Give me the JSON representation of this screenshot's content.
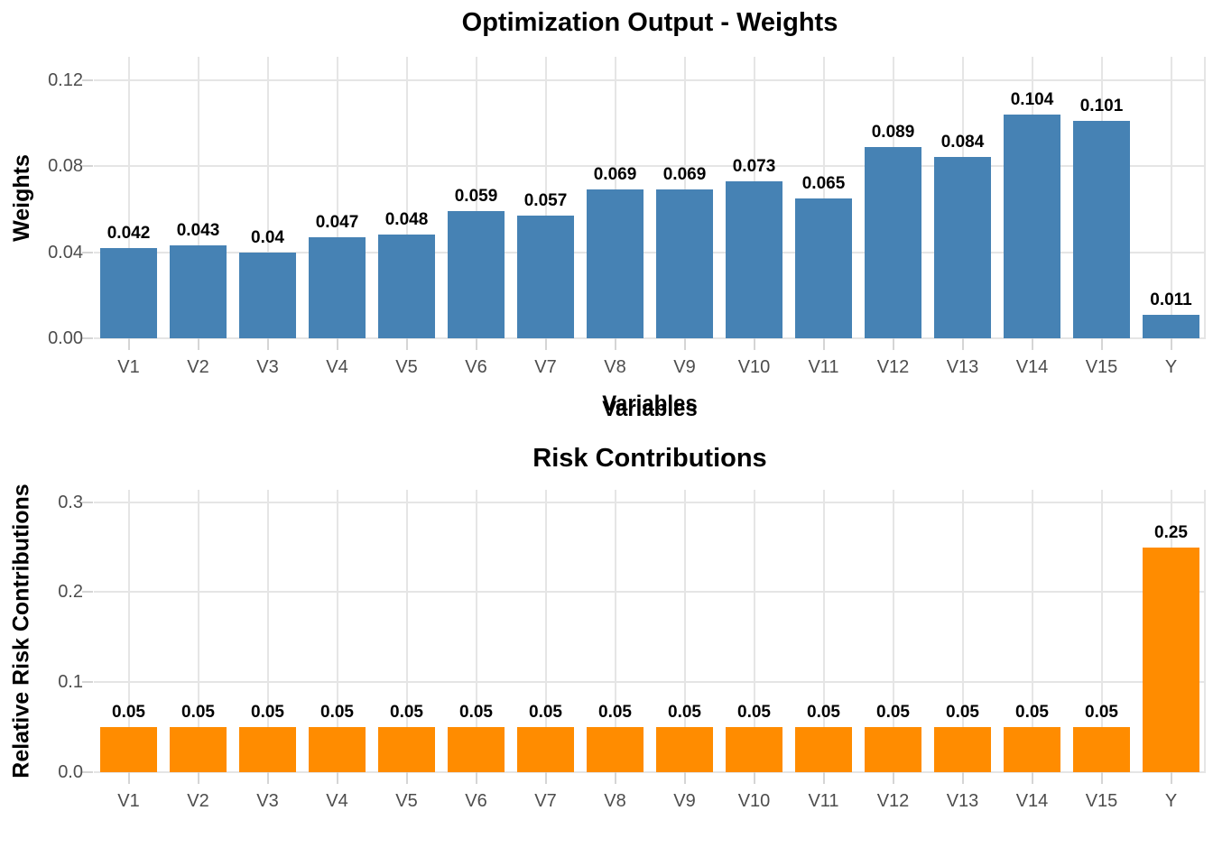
{
  "colors": {
    "background": "#FFFFFF",
    "grid": "#E5E5E5",
    "tick_mark": "#D5D5D5",
    "tick_text": "#4D4D4D",
    "title_text": "#000000",
    "weights_bar": "#4682B4",
    "risk_bar": "#FF8C00"
  },
  "chart_data": [
    {
      "type": "bar",
      "title": "Optimization Output - Weights",
      "xlabel": "Variables",
      "ylabel": "Weights",
      "legend": "none",
      "grid": true,
      "bar_color": "#4682B4",
      "categories": [
        "V1",
        "V2",
        "V3",
        "V4",
        "V5",
        "V6",
        "V7",
        "V8",
        "V9",
        "V10",
        "V11",
        "V12",
        "V13",
        "V14",
        "V15",
        "Y"
      ],
      "values": [
        0.042,
        0.043,
        0.04,
        0.047,
        0.048,
        0.059,
        0.057,
        0.069,
        0.069,
        0.073,
        0.065,
        0.089,
        0.084,
        0.104,
        0.101,
        0.011
      ],
      "bar_labels": [
        "0.042",
        "0.043",
        "0.04",
        "0.047",
        "0.048",
        "0.059",
        "0.057",
        "0.069",
        "0.069",
        "0.073",
        "0.065",
        "0.089",
        "0.084",
        "0.104",
        "0.101",
        "0.011"
      ],
      "ylim": [
        0,
        0.1307
      ],
      "yticks": [
        {
          "v": 0.0,
          "label": "0.00"
        },
        {
          "v": 0.04,
          "label": "0.04"
        },
        {
          "v": 0.08,
          "label": "0.08"
        },
        {
          "v": 0.12,
          "label": "0.12"
        }
      ]
    },
    {
      "type": "bar",
      "title": "Risk Contributions",
      "xlabel": "Variables",
      "ylabel": "Relative Risk Contributions",
      "legend": "none",
      "grid": true,
      "bar_color": "#FF8C00",
      "categories": [
        "V1",
        "V2",
        "V3",
        "V4",
        "V5",
        "V6",
        "V7",
        "V8",
        "V9",
        "V10",
        "V11",
        "V12",
        "V13",
        "V14",
        "V15",
        "Y"
      ],
      "values": [
        0.05,
        0.05,
        0.05,
        0.05,
        0.05,
        0.05,
        0.05,
        0.05,
        0.05,
        0.05,
        0.05,
        0.05,
        0.05,
        0.05,
        0.05,
        0.25
      ],
      "bar_labels": [
        "0.05",
        "0.05",
        "0.05",
        "0.05",
        "0.05",
        "0.05",
        "0.05",
        "0.05",
        "0.05",
        "0.05",
        "0.05",
        "0.05",
        "0.05",
        "0.05",
        "0.05",
        "0.25"
      ],
      "ylim": [
        0,
        0.3137
      ],
      "yticks": [
        {
          "v": 0.0,
          "label": "0.0"
        },
        {
          "v": 0.1,
          "label": "0.1"
        },
        {
          "v": 0.2,
          "label": "0.2"
        },
        {
          "v": 0.3,
          "label": "0.3"
        }
      ]
    }
  ]
}
